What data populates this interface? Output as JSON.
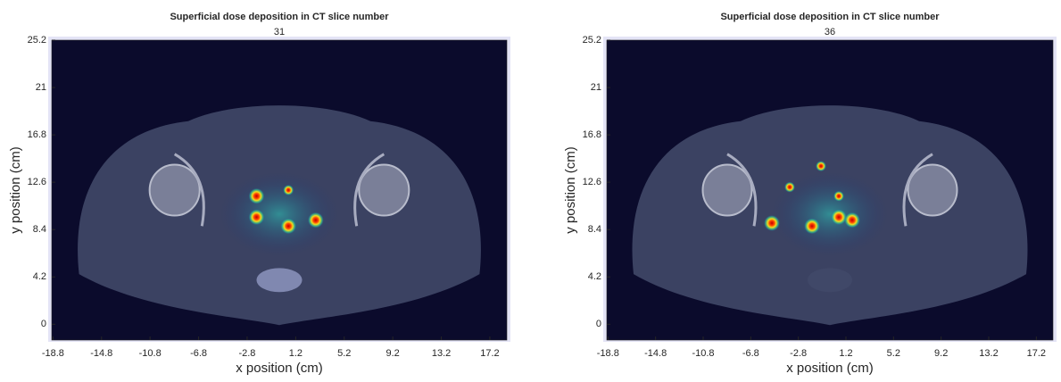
{
  "chart_data": [
    {
      "type": "image",
      "title": "Superficial dose deposition in CT slice number",
      "subtitle": "31",
      "x_label": "x position (cm)",
      "y_label": "y position (cm)",
      "xlim": [
        -18.9,
        18.6
      ],
      "ylim": [
        -1.4,
        25.2
      ],
      "xticks": [
        -18.8,
        -14.8,
        -10.8,
        -6.8,
        -2.8,
        1.2,
        5.2,
        9.2,
        13.2,
        17.2
      ],
      "yticks": [
        0,
        4.2,
        8.4,
        12.6,
        16.8,
        21,
        25.2
      ]
    },
    {
      "type": "image",
      "title": "Superficial dose deposition in CT slice number",
      "subtitle": "36",
      "x_label": "x position (cm)",
      "y_label": "y position (cm)",
      "xlim": [
        -18.9,
        18.6
      ],
      "ylim": [
        -1.4,
        25.2
      ],
      "xticks": [
        -18.8,
        -14.8,
        -10.8,
        -6.8,
        -2.8,
        1.2,
        5.2,
        9.2,
        13.2,
        17.2
      ],
      "yticks": [
        0,
        4.2,
        8.4,
        12.6,
        16.8,
        21,
        25.2
      ]
    }
  ]
}
